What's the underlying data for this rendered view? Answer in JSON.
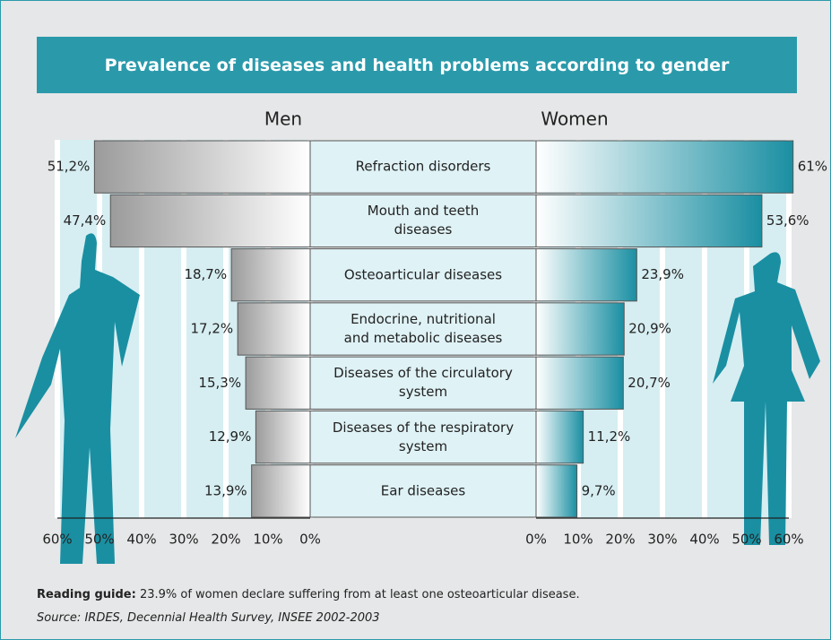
{
  "chart_data": {
    "type": "butterfly-bar",
    "title": "Prevalence of diseases and health problems according to gender",
    "categories": [
      "Refraction disorders",
      "Mouth and teeth\ndiseases",
      "Osteoarticular diseases",
      "Endocrine, nutritional\nand metabolic diseases",
      "Diseases of the circulatory\nsystem",
      "Diseases of the respiratory\nsystem",
      "Ear diseases"
    ],
    "series": [
      {
        "name": "Men",
        "color": "#9b9b9b",
        "values": [
          51.2,
          47.4,
          18.7,
          17.2,
          15.3,
          12.9,
          13.9
        ],
        "value_labels": [
          "51,2%",
          "47,4%",
          "18,7%",
          "17,2%",
          "15,3%",
          "12,9%",
          "13,9%"
        ]
      },
      {
        "name": "Women",
        "color": "#1a8fa2",
        "values": [
          61,
          53.6,
          23.9,
          20.9,
          20.7,
          11.2,
          9.7
        ],
        "value_labels": [
          "61%",
          "53,6%",
          "23,9%",
          "20,9%",
          "20,7%",
          "11,2%",
          "9,7%"
        ]
      }
    ],
    "xlim": [
      0,
      60
    ],
    "xticks": [
      {
        "value": 0,
        "label": "0%"
      },
      {
        "value": 10,
        "label": "10%"
      },
      {
        "value": 20,
        "label": "20%"
      },
      {
        "value": 30,
        "label": "30%"
      },
      {
        "value": 40,
        "label": "40%"
      },
      {
        "value": 50,
        "label": "50%"
      },
      {
        "value": 60,
        "label": "60%"
      }
    ],
    "grid": true
  },
  "notes": {
    "reading_guide_label": "Reading guide:",
    "reading_guide": "23.9% of women declare suffering from at least one osteoarticular disease.",
    "source": "Source: IRDES, Decennial Health Survey, INSEE 2002-2003"
  }
}
